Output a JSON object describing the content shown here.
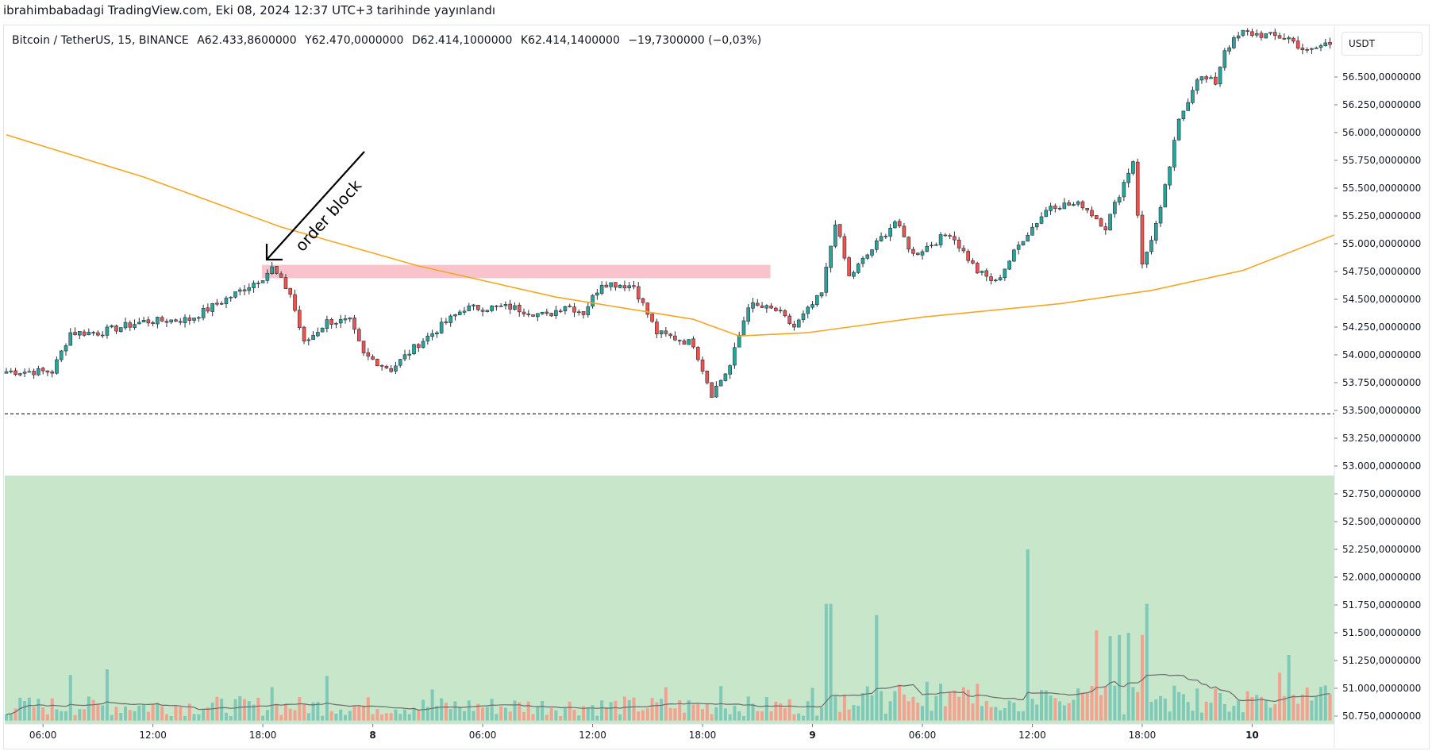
{
  "header": {
    "published_line": "ibrahimbabadagi TradingView.com, Eki 08, 2024 12:37 UTC+3 tarihinde yayınlandı"
  },
  "legend": {
    "symbol": "Bitcoin / TetherUS, 15, BINANCE",
    "open": "A62.433,8600000",
    "high": "Y62.470,0000000",
    "low": "D62.414,1000000",
    "close": "K62.414,1400000",
    "change": "−19,7300000 (−0,03%)"
  },
  "price_scale": {
    "currency": "USDT"
  },
  "annotation": {
    "text": "order block"
  },
  "colors": {
    "up": "#26a69a",
    "down": "#ef5350",
    "ma": "#f5a623",
    "order_block": "#f7b8c1",
    "volume_zone": "#c8e6c9",
    "support_line": "#131722"
  },
  "chart_data": {
    "type": "candlestick",
    "title": "",
    "timeframe": "15",
    "y_ticks": [
      56500,
      56250,
      56000,
      55750,
      55500,
      55250,
      55000,
      54750,
      54500,
      54250,
      54000,
      53750,
      53500,
      53250,
      53000,
      52750,
      52500,
      52250,
      52000,
      51750,
      51500,
      51250,
      51000,
      50750
    ],
    "y_tick_labels": [
      "56.500,0000000",
      "56.250,0000000",
      "56.000,0000000",
      "55.750,0000000",
      "55.500,0000000",
      "55.250,0000000",
      "55.000,0000000",
      "54.750,0000000",
      "54.500,0000000",
      "54.250,0000000",
      "54.000,0000000",
      "53.750,0000000",
      "53.500,0000000",
      "53.250,0000000",
      "53.000,0000000",
      "52.750,0000000",
      "52.500,0000000",
      "52.250,0000000",
      "52.000,0000000",
      "51.750,0000000",
      "51.500,0000000",
      "51.250,0000000",
      "51.000,0000000",
      "50.750,0000000"
    ],
    "ylim": [
      50710,
      56700
    ],
    "x_labels": [
      {
        "label": "06:00",
        "index": 8
      },
      {
        "label": "12:00",
        "index": 32
      },
      {
        "label": "18:00",
        "index": 56
      },
      {
        "label": "8",
        "index": 80
      },
      {
        "label": "06:00",
        "index": 104
      },
      {
        "label": "12:00",
        "index": 128
      },
      {
        "label": "18:00",
        "index": 152
      },
      {
        "label": "9",
        "index": 176
      },
      {
        "label": "06:00",
        "index": 200
      },
      {
        "label": "12:00",
        "index": 224
      },
      {
        "label": "18:00",
        "index": 248
      },
      {
        "label": "10",
        "index": 272
      }
    ],
    "anchors": [
      [
        0,
        53850
      ],
      [
        10,
        53850
      ],
      [
        14,
        54200
      ],
      [
        20,
        54200
      ],
      [
        30,
        54300
      ],
      [
        40,
        54320
      ],
      [
        50,
        54550
      ],
      [
        56,
        54700
      ],
      [
        58,
        54780
      ],
      [
        62,
        54550
      ],
      [
        65,
        54100
      ],
      [
        70,
        54300
      ],
      [
        75,
        54300
      ],
      [
        78,
        54000
      ],
      [
        84,
        53870
      ],
      [
        90,
        54100
      ],
      [
        100,
        54420
      ],
      [
        110,
        54430
      ],
      [
        118,
        54350
      ],
      [
        122,
        54450
      ],
      [
        126,
        54380
      ],
      [
        130,
        54650
      ],
      [
        137,
        54620
      ],
      [
        142,
        54200
      ],
      [
        150,
        54100
      ],
      [
        154,
        53650
      ],
      [
        158,
        53900
      ],
      [
        162,
        54450
      ],
      [
        168,
        54400
      ],
      [
        172,
        54250
      ],
      [
        178,
        54550
      ],
      [
        181,
        55200
      ],
      [
        184,
        54700
      ],
      [
        190,
        55000
      ],
      [
        194,
        55200
      ],
      [
        198,
        54900
      ],
      [
        206,
        55100
      ],
      [
        212,
        54750
      ],
      [
        216,
        54650
      ],
      [
        222,
        55050
      ],
      [
        228,
        55350
      ],
      [
        235,
        55350
      ],
      [
        240,
        55150
      ],
      [
        246,
        55750
      ],
      [
        248,
        54800
      ],
      [
        252,
        55300
      ],
      [
        256,
        56100
      ],
      [
        260,
        56500
      ],
      [
        264,
        56450
      ],
      [
        266,
        56750
      ],
      [
        270,
        56900
      ],
      [
        280,
        56850
      ],
      [
        284,
        56720
      ],
      [
        288,
        56800
      ]
    ],
    "candle_count": 290,
    "moving_average": {
      "name": "",
      "points": [
        [
          0,
          55980
        ],
        [
          30,
          55600
        ],
        [
          60,
          55150
        ],
        [
          90,
          54800
        ],
        [
          120,
          54520
        ],
        [
          150,
          54320
        ],
        [
          160,
          54170
        ],
        [
          175,
          54200
        ],
        [
          200,
          54340
        ],
        [
          230,
          54460
        ],
        [
          250,
          54580
        ],
        [
          270,
          54760
        ],
        [
          290,
          55080
        ]
      ]
    },
    "order_block": {
      "start_index": 56,
      "end_index": 167,
      "top": 54810,
      "bottom": 54690
    },
    "support_level": 53470,
    "volume": {
      "baseline": 50710,
      "max_value": 52250,
      "spikes": [
        {
          "index": 223,
          "value": 52250
        },
        {
          "index": 179,
          "value": 51760
        },
        {
          "index": 180,
          "value": 51760
        },
        {
          "index": 190,
          "value": 51660
        },
        {
          "index": 249,
          "value": 51760
        },
        {
          "index": 243,
          "value": 51480
        },
        {
          "index": 248,
          "value": 51480
        },
        {
          "index": 245,
          "value": 51500
        },
        {
          "index": 238,
          "value": 51520
        },
        {
          "index": 241,
          "value": 51470
        },
        {
          "index": 14,
          "value": 51120
        },
        {
          "index": 22,
          "value": 51170
        },
        {
          "index": 58,
          "value": 51010
        },
        {
          "index": 70,
          "value": 51110
        },
        {
          "index": 93,
          "value": 50990
        },
        {
          "index": 144,
          "value": 51010
        },
        {
          "index": 156,
          "value": 51020
        },
        {
          "index": 280,
          "value": 51300
        },
        {
          "index": 278,
          "value": 51140
        }
      ]
    }
  }
}
